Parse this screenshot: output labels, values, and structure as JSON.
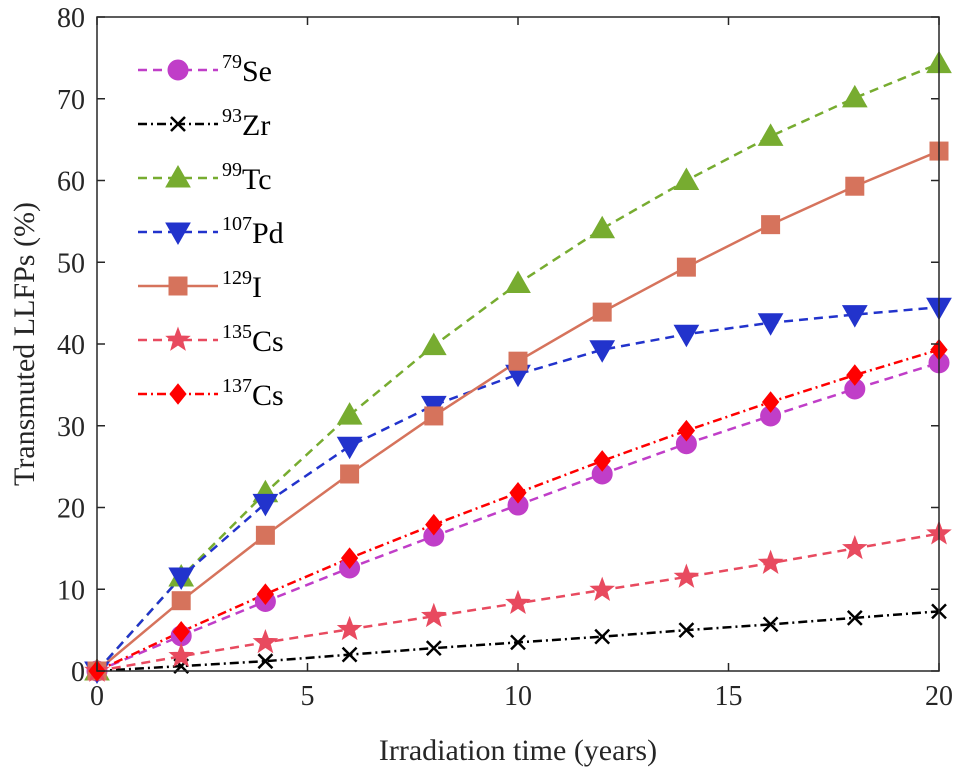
{
  "chart_data": {
    "type": "line",
    "title": "",
    "xlabel": "Irradiation time (years)",
    "ylabel": "Transmuted LLFPs (%)",
    "xlim": [
      0,
      20
    ],
    "ylim": [
      0,
      80
    ],
    "xticks": [
      "0",
      "5",
      "10",
      "15",
      "20"
    ],
    "yticks": [
      "0",
      "10",
      "20",
      "30",
      "40",
      "50",
      "60",
      "70",
      "80"
    ],
    "grid": false,
    "legend_position": "top-left",
    "x": [
      0,
      2,
      4,
      6,
      8,
      10,
      12,
      14,
      16,
      18,
      20
    ],
    "series": [
      {
        "name": "Se",
        "mass": "79",
        "marker": "circle",
        "line": "dashed",
        "color": "#c03ec8",
        "values": [
          0,
          4.3,
          8.5,
          12.6,
          16.5,
          20.3,
          24.1,
          27.8,
          31.2,
          34.5,
          37.7
        ]
      },
      {
        "name": "Zr",
        "mass": "93",
        "marker": "x",
        "line": "dashdot",
        "color": "#000000",
        "values": [
          0,
          0.6,
          1.2,
          2.0,
          2.8,
          3.5,
          4.2,
          5.0,
          5.7,
          6.5,
          7.3
        ]
      },
      {
        "name": "Tc",
        "mass": "99",
        "marker": "triangle-up",
        "line": "dashed",
        "color": "#77ac30",
        "values": [
          0,
          11.5,
          21.8,
          31.3,
          39.8,
          47.4,
          54.1,
          60.0,
          65.4,
          70.1,
          74.3
        ]
      },
      {
        "name": "Pd",
        "mass": "107",
        "marker": "triangle-down",
        "line": "dashed",
        "color": "#2233cc",
        "values": [
          0,
          11.5,
          20.5,
          27.5,
          32.5,
          36.3,
          39.3,
          41.2,
          42.6,
          43.6,
          44.5
        ]
      },
      {
        "name": "I",
        "mass": "129",
        "marker": "square",
        "line": "solid",
        "color": "#d6735c",
        "values": [
          0,
          8.6,
          16.6,
          24.1,
          31.2,
          37.9,
          43.9,
          49.4,
          54.6,
          59.3,
          63.6
        ]
      },
      {
        "name": "Cs",
        "mass": "135",
        "marker": "star",
        "line": "dashed",
        "color": "#e84a5f",
        "values": [
          0,
          1.8,
          3.5,
          5.1,
          6.7,
          8.3,
          9.9,
          11.5,
          13.2,
          15.0,
          16.8
        ]
      },
      {
        "name": "Cs",
        "mass": "137",
        "marker": "diamond",
        "line": "dashdot",
        "color": "#ff0000",
        "values": [
          0,
          4.8,
          9.4,
          13.8,
          17.9,
          21.8,
          25.7,
          29.4,
          32.9,
          36.2,
          39.3
        ]
      }
    ]
  }
}
